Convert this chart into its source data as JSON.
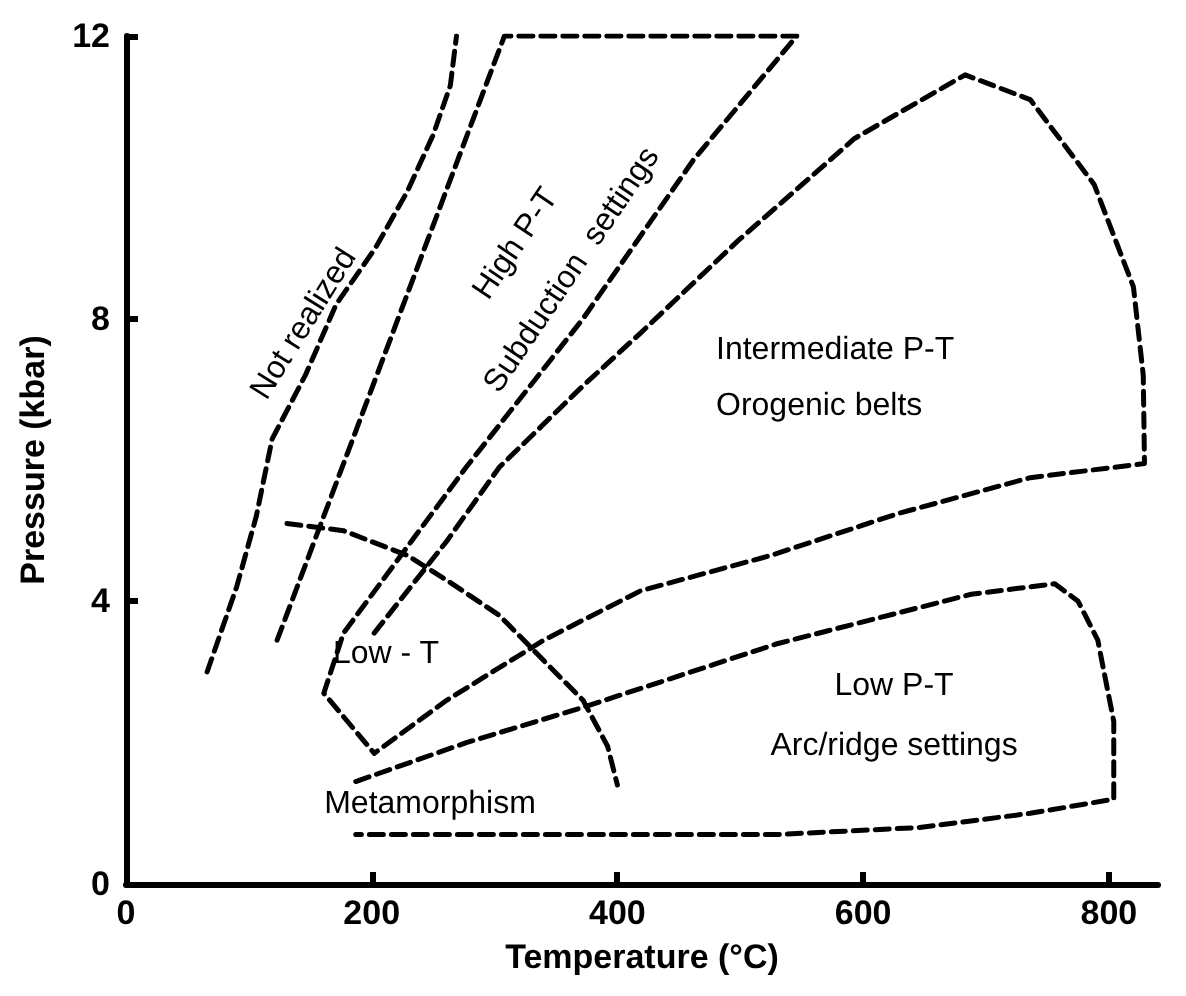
{
  "chart_data": {
    "type": "line",
    "xlabel": "Temperature (°C)",
    "ylabel": "Pressure (kbar)",
    "xlim": [
      0,
      840
    ],
    "xticks": [
      0,
      200,
      400,
      600,
      800
    ],
    "ylim": [
      0,
      12
    ],
    "yticks": [
      0,
      4,
      8,
      12
    ],
    "grid": false,
    "marker": "none",
    "line_style": "dashed",
    "series": [
      {
        "color": "#000000",
        "x": [
          66,
          90,
          106,
          119,
          146,
          171,
          203,
          229,
          250,
          264,
          269
        ],
        "values": [
          3.0,
          4.2,
          5.2,
          6.3,
          7.2,
          8.2,
          9.0,
          9.8,
          10.6,
          11.3,
          12.0
        ]
      },
      {
        "color": "#000000",
        "x": [
          123,
          308,
          546,
          462,
          372,
          277,
          177,
          161,
          202
        ],
        "values": [
          3.45,
          12.0,
          12.0,
          10.25,
          8.0,
          5.9,
          3.55,
          2.7,
          1.85
        ]
      },
      {
        "color": "#000000",
        "x": [
          202,
          261,
          304,
          372,
          419,
          498,
          593,
          683,
          736,
          788,
          820,
          828,
          829,
          736,
          630,
          525,
          419,
          340,
          261,
          202
        ],
        "values": [
          3.55,
          4.85,
          5.9,
          7.05,
          7.8,
          9.1,
          10.55,
          11.45,
          11.1,
          9.9,
          8.45,
          7.2,
          5.95,
          5.75,
          5.25,
          4.65,
          4.15,
          3.45,
          2.6,
          1.85
        ]
      },
      {
        "color": "#000000",
        "x": [
          187,
          277,
          372,
          530,
          688,
          756,
          775,
          791,
          804,
          804,
          736,
          646,
          530,
          419,
          187
        ],
        "values": [
          1.45,
          2.0,
          2.5,
          3.4,
          4.1,
          4.25,
          4.0,
          3.45,
          2.3,
          1.2,
          1.0,
          0.8,
          0.7,
          0.7,
          0.7
        ]
      },
      {
        "color": "#000000",
        "x": [
          131,
          177,
          229,
          261,
          304,
          335,
          372,
          392,
          400
        ],
        "values": [
          5.1,
          5.0,
          4.65,
          4.3,
          3.8,
          3.25,
          2.6,
          1.95,
          1.4
        ]
      }
    ],
    "annotations": [
      "Not realized",
      "High P-T",
      "Subduction  settings",
      "Intermediate P-T",
      "Orogenic belts",
      "Low - T",
      "Metamorphism",
      "Low P-T",
      "Arc/ridge settings"
    ]
  }
}
